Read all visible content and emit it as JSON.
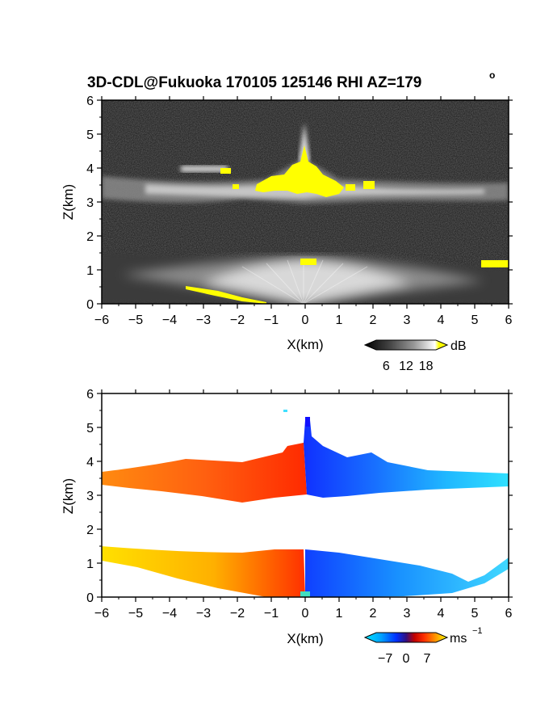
{
  "figure": {
    "title": "3D-CDL@Fukuoka 170105 125146 RHI AZ=179",
    "title_degree": "o"
  },
  "chart_data": [
    {
      "type": "heatmap",
      "quantity": "backscatter intensity",
      "xlabel": "X(km)",
      "ylabel": "Z(km)",
      "xlim": [
        -6,
        6
      ],
      "ylim": [
        0,
        6
      ],
      "xticks": [
        "−6",
        "−5",
        "−4",
        "−3",
        "−2",
        "−1",
        "0",
        "1",
        "2",
        "3",
        "4",
        "5",
        "6"
      ],
      "yticks": [
        "0",
        "1",
        "2",
        "3",
        "4",
        "5",
        "6"
      ],
      "grid": false,
      "background_color": "#1c1c1c",
      "colorbar": {
        "unit": "dB",
        "ticks": [
          "6",
          "12",
          "18"
        ],
        "range": [
          3,
          21
        ],
        "colors": [
          "#000000",
          "#404040",
          "#808080",
          "#c0c0c0",
          "#ffffff",
          "#ffff00"
        ]
      },
      "features": [
        {
          "name": "cloud layer",
          "x_range": [
            -6,
            6
          ],
          "z_range": [
            3.0,
            4.0
          ],
          "peak_x": 0,
          "peak_z": 4.6,
          "intensity_db": 12
        },
        {
          "name": "cloud strong core",
          "x_range": [
            -1.5,
            2.0
          ],
          "z_range": [
            3.3,
            4.1
          ],
          "intensity_db": 19
        },
        {
          "name": "upper thin layer",
          "x_range": [
            -3.6,
            -2.2
          ],
          "z_range": [
            3.9,
            4.1
          ],
          "intensity_db": 14
        },
        {
          "name": "boundary layer",
          "x_range": [
            -6,
            6
          ],
          "z_range": [
            0,
            1.5
          ],
          "intensity_db": 10
        },
        {
          "name": "boundary layer top echo",
          "x_range": [
            5.2,
            6.0
          ],
          "z_range": [
            1.0,
            1.3
          ],
          "intensity_db": 19
        },
        {
          "name": "ground clutter",
          "x_range": [
            -3.5,
            -0.5
          ],
          "z_range": [
            0,
            0.5
          ],
          "intensity_db": 19
        }
      ]
    },
    {
      "type": "heatmap",
      "quantity": "Doppler velocity",
      "xlabel": "X(km)",
      "ylabel": "Z(km)",
      "xlim": [
        -6,
        6
      ],
      "ylim": [
        0,
        6
      ],
      "xticks": [
        "−6",
        "−5",
        "−4",
        "−3",
        "−2",
        "−1",
        "0",
        "1",
        "2",
        "3",
        "4",
        "5",
        "6"
      ],
      "yticks": [
        "0",
        "1",
        "2",
        "3",
        "4",
        "5",
        "6"
      ],
      "grid": false,
      "background_color": "#ffffff",
      "colorbar": {
        "unit": "ms",
        "unit_exponent": "−1",
        "ticks": [
          "−7",
          "0",
          "7"
        ],
        "range": [
          -10,
          10
        ],
        "colors": [
          "#00e5ff",
          "#00a0ff",
          "#0030ff",
          "#1010a0",
          "#a00000",
          "#ff2000",
          "#ff8000",
          "#ffe000"
        ]
      },
      "features": [
        {
          "name": "cloud layer approaching",
          "x_range": [
            -6,
            0
          ],
          "z_range": [
            3.0,
            4.2
          ],
          "velocity_ms": 5
        },
        {
          "name": "cloud layer receding",
          "x_range": [
            0,
            6
          ],
          "z_range": [
            2.9,
            4.5
          ],
          "velocity_ms": -6
        },
        {
          "name": "boundary layer approaching",
          "x_range": [
            -6,
            0
          ],
          "z_range": [
            0,
            1.5
          ],
          "velocity_ms": 5
        },
        {
          "name": "boundary layer receding",
          "x_range": [
            0,
            6
          ],
          "z_range": [
            0,
            1.4
          ],
          "velocity_ms": -5
        }
      ]
    }
  ]
}
